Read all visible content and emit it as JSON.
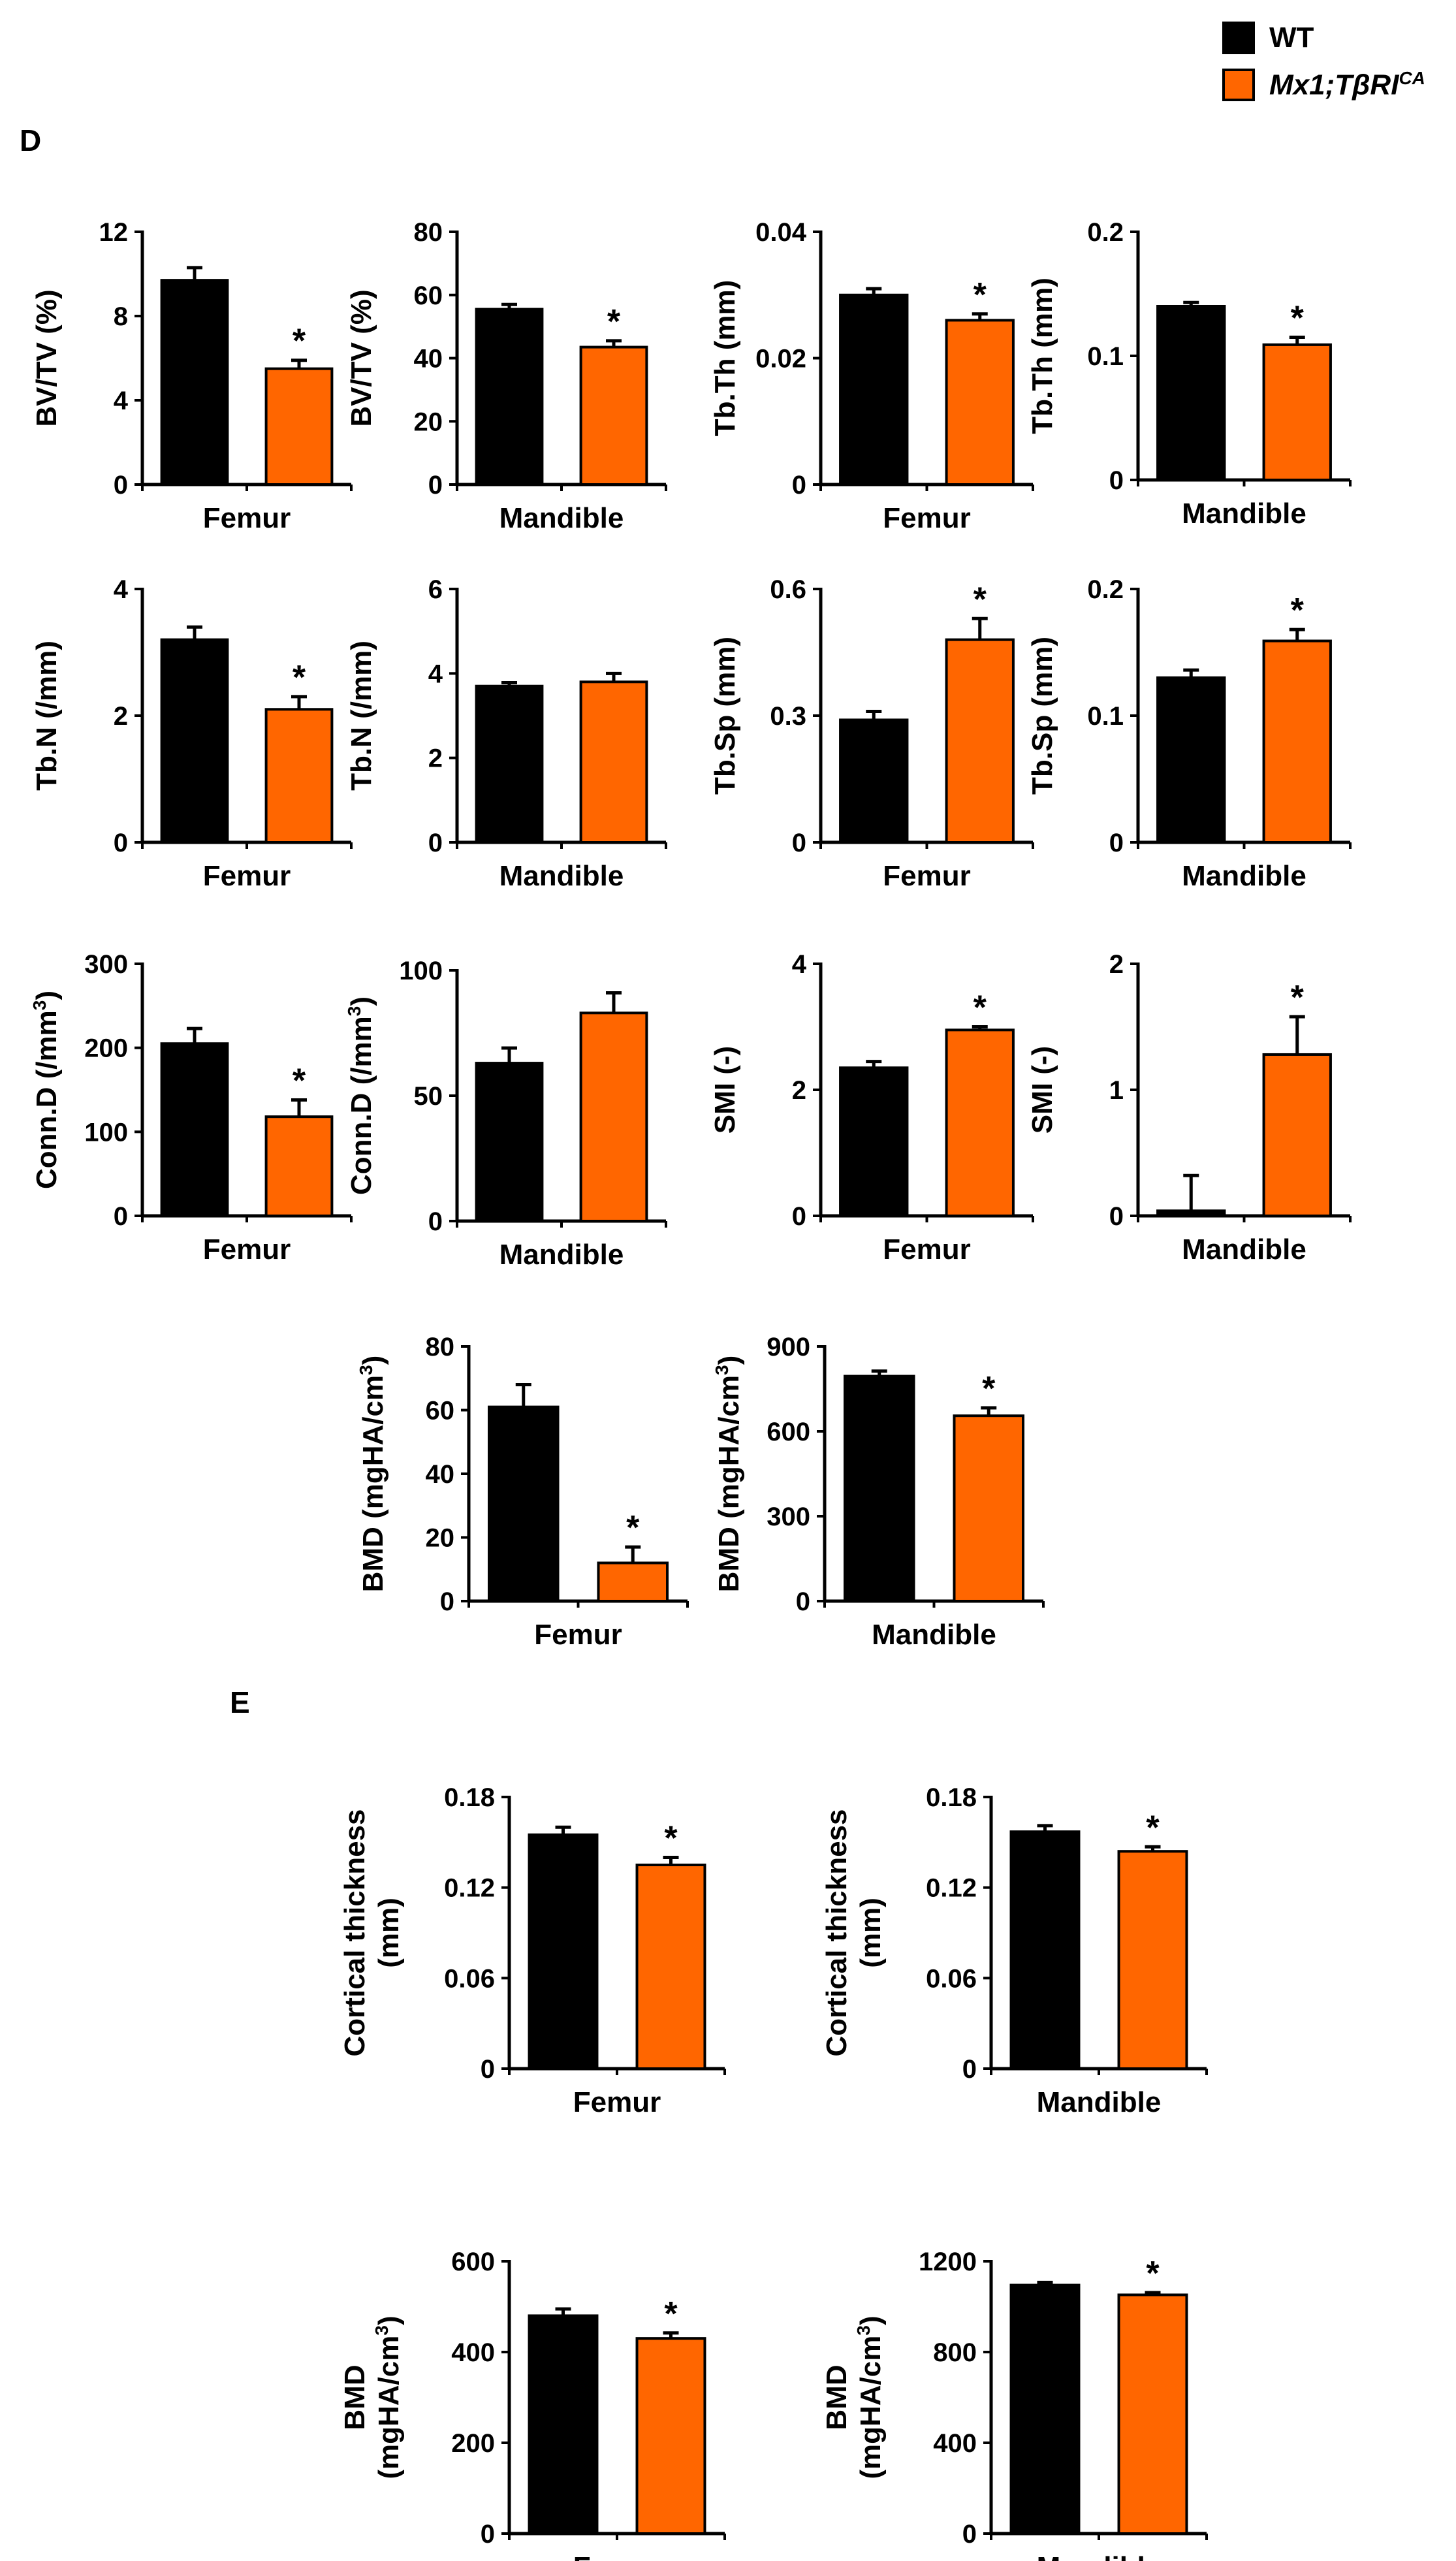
{
  "colors": {
    "wt": "#000000",
    "mutant": "#FF6600"
  },
  "legend": {
    "wt_label": "WT",
    "mutant_label_main": "Mx1;TβRI",
    "mutant_label_sup": "CA"
  },
  "panels": {
    "d_label": "D",
    "e_label": "E"
  },
  "chart_data": [
    {
      "id": "d1",
      "type": "bar",
      "panel": "D",
      "ylabel": "BV/TV (%)",
      "xlabel": "Femur",
      "ylim": [
        0,
        12
      ],
      "ticks": [
        "0",
        "4",
        "8",
        "12"
      ],
      "categories": [
        "WT",
        "Mx1;TβRICA"
      ],
      "values": [
        9.7,
        5.5
      ],
      "errors": [
        0.6,
        0.4
      ],
      "significance": [
        false,
        true
      ]
    },
    {
      "id": "d2",
      "type": "bar",
      "panel": "D",
      "ylabel": "BV/TV (%)",
      "xlabel": "Mandible",
      "ylim": [
        0,
        80
      ],
      "ticks": [
        "0",
        "20",
        "40",
        "60",
        "80"
      ],
      "categories": [
        "WT",
        "Mx1;TβRICA"
      ],
      "values": [
        55.5,
        43.5
      ],
      "errors": [
        1.5,
        2.0
      ],
      "significance": [
        false,
        true
      ]
    },
    {
      "id": "d3",
      "type": "bar",
      "panel": "D",
      "ylabel": "Tb.Th (mm)",
      "xlabel": "Femur",
      "ylim": [
        0,
        0.04
      ],
      "ticks": [
        "0",
        "0.02",
        "0.04"
      ],
      "categories": [
        "WT",
        "Mx1;TβRICA"
      ],
      "values": [
        0.03,
        0.026
      ],
      "errors": [
        0.001,
        0.001
      ],
      "significance": [
        false,
        true
      ]
    },
    {
      "id": "d4",
      "type": "bar",
      "panel": "D",
      "ylabel": "Tb.Th (mm)",
      "xlabel": "Mandible",
      "ylim": [
        0,
        0.2
      ],
      "ticks": [
        "0",
        "0.1",
        "0.2"
      ],
      "categories": [
        "WT",
        "Mx1;TβRICA"
      ],
      "values": [
        0.14,
        0.109
      ],
      "errors": [
        0.003,
        0.006
      ],
      "significance": [
        false,
        true
      ]
    },
    {
      "id": "d5",
      "type": "bar",
      "panel": "D",
      "ylabel": "Tb.N (/mm)",
      "xlabel": "Femur",
      "ylim": [
        0,
        4
      ],
      "ticks": [
        "0",
        "2",
        "4"
      ],
      "categories": [
        "WT",
        "Mx1;TβRICA"
      ],
      "values": [
        3.2,
        2.1
      ],
      "errors": [
        0.2,
        0.2
      ],
      "significance": [
        false,
        true
      ]
    },
    {
      "id": "d6",
      "type": "bar",
      "panel": "D",
      "ylabel": "Tb.N (/mm)",
      "xlabel": "Mandible",
      "ylim": [
        0,
        6
      ],
      "ticks": [
        "0",
        "2",
        "4",
        "6"
      ],
      "categories": [
        "WT",
        "Mx1;TβRICA"
      ],
      "values": [
        3.7,
        3.8
      ],
      "errors": [
        0.08,
        0.2
      ],
      "significance": [
        false,
        false
      ]
    },
    {
      "id": "d7",
      "type": "bar",
      "panel": "D",
      "ylabel": "Tb.Sp (mm)",
      "xlabel": "Femur",
      "ylim": [
        0,
        0.6
      ],
      "ticks": [
        "0",
        "0.3",
        "0.6"
      ],
      "categories": [
        "WT",
        "Mx1;TβRICA"
      ],
      "values": [
        0.29,
        0.48
      ],
      "errors": [
        0.02,
        0.05
      ],
      "significance": [
        false,
        true
      ]
    },
    {
      "id": "d8",
      "type": "bar",
      "panel": "D",
      "ylabel": "Tb.Sp (mm)",
      "xlabel": "Mandible",
      "ylim": [
        0,
        0.2
      ],
      "ticks": [
        "0",
        "0.1",
        "0.2"
      ],
      "categories": [
        "WT",
        "Mx1;TβRICA"
      ],
      "values": [
        0.13,
        0.159
      ],
      "errors": [
        0.006,
        0.009
      ],
      "significance": [
        false,
        true
      ]
    },
    {
      "id": "d9",
      "type": "bar",
      "panel": "D",
      "ylabel": "Conn.D (/mm",
      "ylabel_sup": "3",
      "ylabel_end": ")",
      "xlabel": "Femur",
      "ylim": [
        0,
        300
      ],
      "ticks": [
        "0",
        "100",
        "200",
        "300"
      ],
      "categories": [
        "WT",
        "Mx1;TβRICA"
      ],
      "values": [
        205,
        118
      ],
      "errors": [
        18,
        20
      ],
      "significance": [
        false,
        true
      ]
    },
    {
      "id": "d10",
      "type": "bar",
      "panel": "D",
      "ylabel": "Conn.D (/mm",
      "ylabel_sup": "3",
      "ylabel_end": ")",
      "xlabel": "Mandible",
      "ylim": [
        0,
        100
      ],
      "ticks": [
        "0",
        "50",
        "100"
      ],
      "categories": [
        "WT",
        "Mx1;TβRICA"
      ],
      "values": [
        63,
        83
      ],
      "errors": [
        6,
        8
      ],
      "significance": [
        false,
        false
      ]
    },
    {
      "id": "d11",
      "type": "bar",
      "panel": "D",
      "ylabel": "SMI (-)",
      "xlabel": "Femur",
      "ylim": [
        0,
        4
      ],
      "ticks": [
        "0",
        "2",
        "4"
      ],
      "categories": [
        "WT",
        "Mx1;TβRICA"
      ],
      "values": [
        2.35,
        2.95
      ],
      "errors": [
        0.1,
        0.05
      ],
      "significance": [
        false,
        true
      ]
    },
    {
      "id": "d12",
      "type": "bar",
      "panel": "D",
      "ylabel": "SMI (-)",
      "xlabel": "Mandible",
      "ylim": [
        0,
        2
      ],
      "ticks": [
        "0",
        "1",
        "2"
      ],
      "categories": [
        "WT",
        "Mx1;TβRICA"
      ],
      "values": [
        0.04,
        1.28
      ],
      "errors": [
        0.28,
        0.3
      ],
      "significance": [
        false,
        true
      ]
    },
    {
      "id": "d13",
      "type": "bar",
      "panel": "D",
      "ylabel": "BMD (mgHA/cm",
      "ylabel_sup": "3",
      "ylabel_end": ")",
      "xlabel": "Femur",
      "ylim": [
        0,
        80
      ],
      "ticks": [
        "0",
        "20",
        "40",
        "60",
        "80"
      ],
      "categories": [
        "WT",
        "Mx1;TβRICA"
      ],
      "values": [
        61,
        12
      ],
      "errors": [
        7,
        5
      ],
      "significance": [
        false,
        true
      ]
    },
    {
      "id": "d14",
      "type": "bar",
      "panel": "D",
      "ylabel": "BMD (mgHA/cm",
      "ylabel_sup": "3",
      "ylabel_end": ")",
      "xlabel": "Mandible",
      "ylim": [
        0,
        900
      ],
      "ticks": [
        "0",
        "300",
        "600",
        "900"
      ],
      "categories": [
        "WT",
        "Mx1;TβRICA"
      ],
      "values": [
        795,
        655
      ],
      "errors": [
        18,
        28
      ],
      "significance": [
        false,
        true
      ]
    },
    {
      "id": "e1",
      "type": "bar",
      "panel": "E",
      "ylabel": "Cortical thickness",
      "ylabel2": "(mm)",
      "xlabel": "Femur",
      "ylim": [
        0,
        0.18
      ],
      "ticks": [
        "0",
        "0.06",
        "0.12",
        "0.18"
      ],
      "categories": [
        "WT",
        "Mx1;TβRICA"
      ],
      "values": [
        0.155,
        0.135
      ],
      "errors": [
        0.005,
        0.005
      ],
      "significance": [
        false,
        true
      ]
    },
    {
      "id": "e2",
      "type": "bar",
      "panel": "E",
      "ylabel": "Cortical thickness",
      "ylabel2": "(mm)",
      "xlabel": "Mandible",
      "ylim": [
        0,
        0.18
      ],
      "ticks": [
        "0",
        "0.06",
        "0.12",
        "0.18"
      ],
      "categories": [
        "WT",
        "Mx1;TβRICA"
      ],
      "values": [
        0.157,
        0.144
      ],
      "errors": [
        0.004,
        0.003
      ],
      "significance": [
        false,
        true
      ]
    },
    {
      "id": "e3",
      "type": "bar",
      "panel": "E",
      "ylabel": "BMD",
      "ylabel2": "(mgHA/cm",
      "ylabel2_sup": "3",
      "ylabel2_end": ")",
      "xlabel": "Femur",
      "ylim": [
        0,
        600
      ],
      "ticks": [
        "0",
        "200",
        "400",
        "600"
      ],
      "categories": [
        "WT",
        "Mx1;TβRICA"
      ],
      "values": [
        480,
        430
      ],
      "errors": [
        15,
        12
      ],
      "significance": [
        false,
        true
      ]
    },
    {
      "id": "e4",
      "type": "bar",
      "panel": "E",
      "ylabel": "BMD",
      "ylabel2": "(mgHA/cm",
      "ylabel2_sup": "3",
      "ylabel2_end": ")",
      "xlabel": "Mandible",
      "ylim": [
        0,
        1200
      ],
      "ticks": [
        "0",
        "400",
        "800",
        "1200"
      ],
      "categories": [
        "WT",
        "Mx1;TβRICA"
      ],
      "values": [
        1095,
        1052
      ],
      "errors": [
        12,
        10
      ],
      "significance": [
        false,
        true
      ]
    }
  ]
}
